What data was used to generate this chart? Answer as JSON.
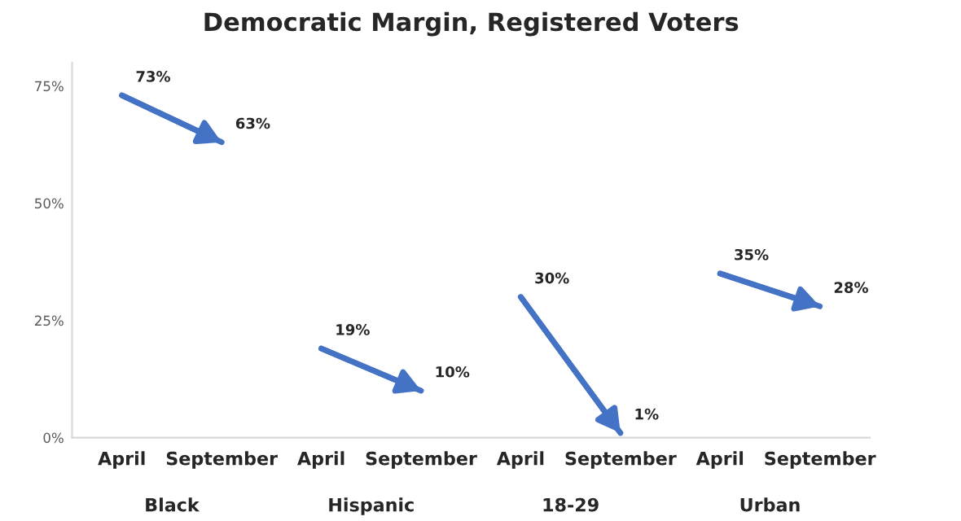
{
  "chart_data": {
    "type": "line",
    "title": "Democratic Margin, Registered Voters",
    "categories": [
      "April",
      "September",
      "April",
      "September",
      "April",
      "September",
      "April",
      "September"
    ],
    "series": [
      {
        "color": "#4472c4",
        "values": [
          73,
          63,
          null,
          null,
          null,
          null,
          null,
          null
        ],
        "value_labels": [
          "73%",
          "63%",
          null,
          null,
          null,
          null,
          null,
          null
        ]
      },
      {
        "color": "#4472c4",
        "values": [
          null,
          null,
          19,
          10,
          null,
          null,
          null,
          null
        ],
        "value_labels": [
          null,
          null,
          "19%",
          "10%",
          null,
          null,
          null,
          null
        ]
      },
      {
        "color": "#4472c4",
        "values": [
          null,
          null,
          null,
          null,
          30,
          1,
          null,
          null
        ],
        "value_labels": [
          null,
          null,
          null,
          null,
          "30%",
          "1%",
          null,
          null
        ]
      },
      {
        "color": "#4472c4",
        "values": [
          null,
          null,
          null,
          null,
          null,
          null,
          35,
          28
        ],
        "value_labels": [
          null,
          null,
          null,
          null,
          null,
          null,
          "35%",
          "28%"
        ]
      }
    ],
    "annotations": [
      "Black",
      "Hispanic",
      "18-29",
      "Urban"
    ],
    "ylim": [
      0,
      80
    ],
    "yticks": [
      {
        "value": 0,
        "label": "0%"
      },
      {
        "value": 25,
        "label": "25%"
      },
      {
        "value": 50,
        "label": "50%"
      },
      {
        "value": 75,
        "label": "75%"
      }
    ],
    "grid": false,
    "legend": false,
    "marker": "none",
    "line_style": "solid"
  }
}
